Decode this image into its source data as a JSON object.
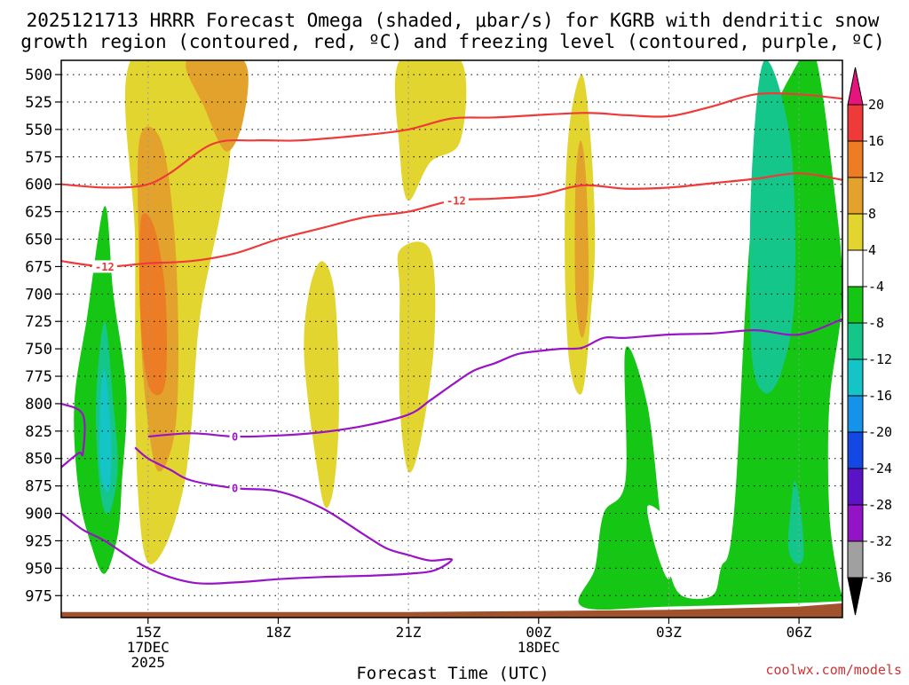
{
  "header": {
    "title_line1": "2025121713 HRRR Forecast Omega (shaded, μbar/s) for KGRB with dendritic snow",
    "title_line2": "growth region (contoured, red, ºC) and freezing level (contoured, purple, ºC)"
  },
  "footer": {
    "xlabel": "Forecast Time (UTC)",
    "credit": "coolwx.com/models"
  },
  "chart_data": {
    "type": "heatmap",
    "title": "2025121713 HRRR Forecast Omega (shaded, μbar/s) for KGRB with dendritic snow growth region (contoured, red, ºC) and freezing level (contoured, purple, ºC)",
    "xlabel": "Forecast Time (UTC)",
    "ylabel": "",
    "y_axis": {
      "ticks": [
        500,
        525,
        550,
        575,
        600,
        625,
        650,
        675,
        700,
        725,
        750,
        775,
        800,
        825,
        850,
        875,
        900,
        925,
        950,
        975
      ],
      "range": [
        487,
        995
      ],
      "inverted": true
    },
    "x_axis": {
      "ticks": [
        {
          "label": "15Z",
          "sub": [
            "17DEC",
            "2025"
          ],
          "hour": 15
        },
        {
          "label": "18Z",
          "sub": [],
          "hour": 18
        },
        {
          "label": "21Z",
          "sub": [],
          "hour": 21
        },
        {
          "label": "00Z",
          "sub": [
            "18DEC"
          ],
          "hour": 24
        },
        {
          "label": "03Z",
          "sub": [],
          "hour": 27
        },
        {
          "label": "06Z",
          "sub": [],
          "hour": 30
        }
      ],
      "range_hours": [
        13.0,
        31.0
      ]
    },
    "grid": true,
    "colorbar": {
      "labels": [
        "20",
        "16",
        "12",
        "8",
        "4",
        "-4",
        "-8",
        "-12",
        "-16",
        "-20",
        "-24",
        "-28",
        "-32",
        "-36"
      ],
      "colors": [
        "#e8147e",
        "#ef3a3a",
        "#ec7d24",
        "#e3a22c",
        "#e3d52f",
        "#ffffff",
        "#15c615",
        "#14c68a",
        "#14c4c6",
        "#1493e8",
        "#1448e3",
        "#5a14c6",
        "#9314c6",
        "#a0a0a0",
        "#000000"
      ]
    },
    "omega_regions": [
      {
        "name": "upward-lobe-15z",
        "color": "#e3d52f",
        "points": [
          [
            14.6,
            487
          ],
          [
            16.7,
            487
          ],
          [
            16.9,
            560
          ],
          [
            16.7,
            620
          ],
          [
            16.2,
            720
          ],
          [
            16.0,
            820
          ],
          [
            15.8,
            880
          ],
          [
            15.4,
            930
          ],
          [
            15.0,
            945
          ],
          [
            14.8,
            900
          ],
          [
            14.7,
            800
          ],
          [
            14.7,
            650
          ]
        ]
      },
      {
        "name": "upward-core-15z",
        "color": "#e3a22c",
        "points": [
          [
            15.9,
            487
          ],
          [
            17.2,
            487
          ],
          [
            17.2,
            540
          ],
          [
            16.8,
            570
          ],
          [
            16.3,
            530
          ]
        ]
      },
      {
        "name": "upward-core-15z-low",
        "color": "#e3a22c",
        "points": [
          [
            14.8,
            560
          ],
          [
            15.3,
            560
          ],
          [
            15.6,
            640
          ],
          [
            15.7,
            750
          ],
          [
            15.6,
            830
          ],
          [
            15.2,
            860
          ],
          [
            14.9,
            780
          ],
          [
            14.8,
            680
          ]
        ]
      },
      {
        "name": "upward-max-15z",
        "color": "#ec7d24",
        "points": [
          [
            14.85,
            630
          ],
          [
            15.15,
            640
          ],
          [
            15.4,
            700
          ],
          [
            15.4,
            780
          ],
          [
            15.1,
            790
          ],
          [
            14.9,
            760
          ],
          [
            14.8,
            690
          ]
        ]
      },
      {
        "name": "upward-lobe-19z",
        "color": "#e3d52f",
        "points": [
          [
            19.0,
            670
          ],
          [
            19.3,
            700
          ],
          [
            19.4,
            800
          ],
          [
            19.3,
            870
          ],
          [
            19.1,
            895
          ],
          [
            18.9,
            860
          ],
          [
            18.6,
            760
          ],
          [
            18.7,
            700
          ]
        ]
      },
      {
        "name": "upward-lobe-21z-high",
        "color": "#e3d52f",
        "points": [
          [
            20.8,
            487
          ],
          [
            22.2,
            487
          ],
          [
            22.2,
            560
          ],
          [
            21.5,
            580
          ],
          [
            21.0,
            615
          ],
          [
            20.8,
            570
          ]
        ]
      },
      {
        "name": "upward-lobe-21z-low",
        "color": "#e3d52f",
        "points": [
          [
            20.8,
            660
          ],
          [
            21.5,
            660
          ],
          [
            21.6,
            740
          ],
          [
            21.3,
            830
          ],
          [
            21.0,
            862
          ],
          [
            20.8,
            800
          ],
          [
            20.8,
            700
          ]
        ]
      },
      {
        "name": "upward-lobe-01z",
        "color": "#e3d52f",
        "points": [
          [
            25.0,
            500
          ],
          [
            25.2,
            560
          ],
          [
            25.3,
            650
          ],
          [
            25.2,
            720
          ],
          [
            25.0,
            790
          ],
          [
            24.7,
            760
          ],
          [
            24.6,
            650
          ],
          [
            24.7,
            550
          ]
        ]
      },
      {
        "name": "upward-core-01z",
        "color": "#e3a22c",
        "points": [
          [
            24.97,
            560
          ],
          [
            25.1,
            600
          ],
          [
            25.15,
            700
          ],
          [
            25.0,
            740
          ],
          [
            24.85,
            700
          ],
          [
            24.85,
            600
          ]
        ]
      },
      {
        "name": "downward-lobe-14z",
        "color": "#15c615",
        "points": [
          [
            14.0,
            620
          ],
          [
            14.2,
            700
          ],
          [
            14.5,
            790
          ],
          [
            14.4,
            870
          ],
          [
            14.3,
            920
          ],
          [
            14.0,
            955
          ],
          [
            13.7,
            930
          ],
          [
            13.4,
            880
          ],
          [
            13.3,
            800
          ],
          [
            13.6,
            720
          ]
        ]
      },
      {
        "name": "downward-core-14z",
        "color": "#14c68a",
        "points": [
          [
            14.0,
            725
          ],
          [
            14.2,
            800
          ],
          [
            14.3,
            860
          ],
          [
            14.1,
            900
          ],
          [
            13.9,
            880
          ],
          [
            13.8,
            800
          ]
        ]
      },
      {
        "name": "downward-max-14z",
        "color": "#14c4c6",
        "points": [
          [
            14.0,
            770
          ],
          [
            14.15,
            830
          ],
          [
            14.1,
            880
          ],
          [
            13.9,
            860
          ],
          [
            13.9,
            800
          ]
        ]
      },
      {
        "name": "downward-lobe-02z",
        "color": "#15c615",
        "points": [
          [
            26.0,
            750
          ],
          [
            26.5,
            800
          ],
          [
            26.8,
            900
          ],
          [
            27.0,
            950
          ],
          [
            27.3,
            975
          ],
          [
            28.0,
            975
          ],
          [
            28.2,
            950
          ],
          [
            28.5,
            900
          ],
          [
            29.0,
            600
          ],
          [
            30.0,
            487
          ],
          [
            30.4,
            487
          ],
          [
            30.8,
            600
          ],
          [
            31.0,
            700
          ],
          [
            30.7,
            800
          ],
          [
            30.7,
            900
          ],
          [
            30.9,
            960
          ],
          [
            31.0,
            975
          ],
          [
            31.0,
            980
          ],
          [
            27.0,
            985
          ],
          [
            25.0,
            985
          ],
          [
            25.3,
            950
          ],
          [
            25.5,
            900
          ],
          [
            26.0,
            870
          ]
        ]
      },
      {
        "name": "downward-gap-03z",
        "color": "#ffffff",
        "points": [
          [
            26.5,
            895
          ],
          [
            27.1,
            905
          ],
          [
            27.3,
            890
          ],
          [
            27.0,
            960
          ]
        ]
      },
      {
        "name": "downward-core-05z",
        "color": "#14c68a",
        "points": [
          [
            29.2,
            487
          ],
          [
            29.8,
            560
          ],
          [
            29.9,
            700
          ],
          [
            29.6,
            770
          ],
          [
            29.2,
            790
          ],
          [
            28.9,
            750
          ],
          [
            28.9,
            600
          ]
        ]
      },
      {
        "name": "downward-core-06z",
        "color": "#14c68a",
        "points": [
          [
            29.9,
            870
          ],
          [
            30.05,
            900
          ],
          [
            30.1,
            940
          ],
          [
            29.9,
            945
          ],
          [
            29.75,
            930
          ],
          [
            29.8,
            900
          ]
        ]
      }
    ],
    "series": [
      {
        "name": "",
        "color": "#ef3a3a",
        "x": [
          13.0,
          14.0,
          14.9,
          15.5,
          16.5,
          17.5,
          18.5,
          20.0,
          21.0,
          22.0,
          23.0,
          25.0,
          26.0,
          27.0,
          28.0,
          29.0,
          30.0,
          31.0
        ],
        "y": [
          600,
          603,
          601,
          590,
          563,
          560,
          560,
          555,
          550,
          540,
          539,
          535,
          537,
          538,
          529,
          518,
          518,
          522
        ],
        "labels": []
      },
      {
        "name": "",
        "color": "#ef3a3a",
        "x": [
          13.0,
          14.0,
          15.0,
          16.0,
          17.0,
          18.0,
          19.0,
          20.0,
          21.0,
          22.0,
          23.0,
          24.0,
          25.0,
          26.0,
          27.0,
          28.0,
          29.0,
          30.0,
          31.0
        ],
        "y": [
          670,
          675,
          672,
          670,
          663,
          650,
          640,
          630,
          625,
          615,
          613,
          610,
          601,
          604,
          603,
          599,
          595,
          590,
          596
        ],
        "labels": [
          {
            "text": "-12",
            "x": 14.0
          },
          {
            "text": "-12",
            "x": 22.1
          }
        ]
      },
      {
        "name": "",
        "color": "#9a14c6",
        "x": [
          15.0,
          16.0,
          17.0,
          18.0,
          19.0,
          20.0,
          21.0,
          21.5,
          22.0,
          22.5,
          23.0,
          23.5,
          24.0,
          24.5,
          25.0,
          25.5,
          26.0,
          27.0,
          28.0,
          29.0,
          30.0,
          31.0
        ],
        "y": [
          830,
          827,
          830,
          829,
          826,
          820,
          810,
          797,
          783,
          770,
          763,
          755,
          752,
          750,
          749,
          740,
          740,
          737,
          736,
          733,
          737,
          723
        ],
        "labels": [
          {
            "text": "0",
            "x": 17.0
          }
        ]
      },
      {
        "name": "",
        "color": "#9a14c6",
        "x": [
          14.7,
          15.0,
          15.5,
          16.0,
          17.0,
          18.0,
          19.0,
          20.0,
          20.5,
          21.0,
          21.5,
          22.0,
          21.6,
          21.0,
          20.0,
          19.0,
          18.0,
          17.0,
          16.0,
          15.0,
          14.0,
          13.5,
          13.0
        ],
        "y": [
          840,
          850,
          860,
          870,
          877,
          880,
          895,
          920,
          932,
          938,
          943,
          942,
          952,
          955,
          957,
          958,
          960,
          963,
          963,
          950,
          925,
          915,
          900
        ],
        "labels": [
          {
            "text": "0",
            "x": 17.0
          }
        ]
      },
      {
        "name": "",
        "color": "#9a14c6",
        "x": [
          13.0,
          13.5,
          13.5,
          13.4,
          13.0
        ],
        "y": [
          800,
          810,
          845,
          845,
          858
        ],
        "labels": []
      }
    ],
    "terrain_color": "#a0522d",
    "terrain": {
      "x": [
        13.0,
        18.0,
        21.0,
        24.0,
        27.0,
        30.0,
        31.0
      ],
      "y": [
        990,
        990,
        990,
        989,
        988,
        985,
        982
      ]
    }
  }
}
